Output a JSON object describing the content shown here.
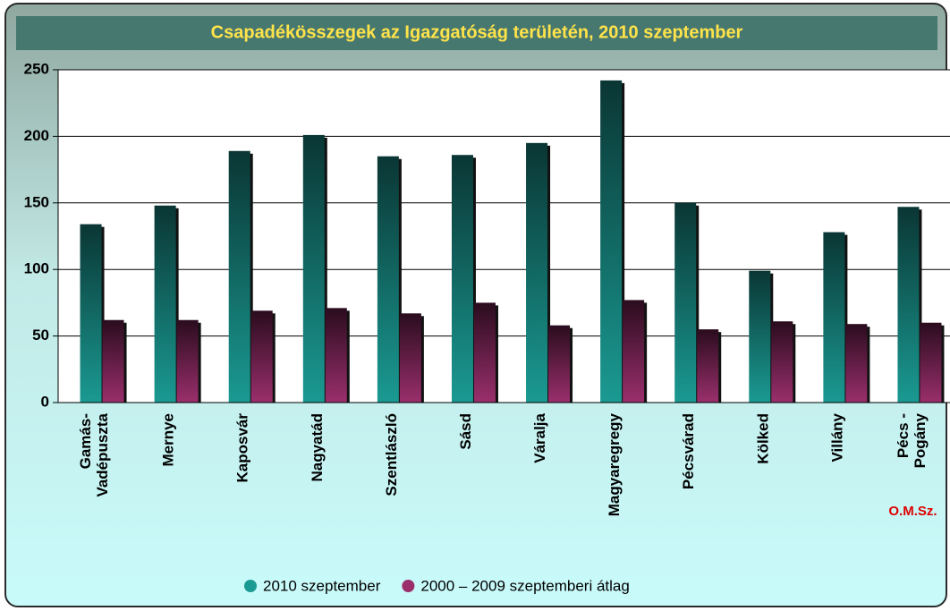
{
  "chart_data": {
    "type": "bar",
    "title": "Csapadékösszegek az Igazgatóság területén, 2010 szeptember",
    "categories": [
      "Gamás-\nVadépuszta",
      "Mernye",
      "Kaposvár",
      "Nagyatád",
      "Szentlászló",
      "Sásd",
      "Váralja",
      "Magyaregregy",
      "Pécsvárad",
      "Kölked",
      "Villány",
      "Pécs -\nPogány"
    ],
    "series": [
      {
        "name": "2010 szeptember",
        "color": "#1a9a92",
        "values": [
          134,
          148,
          189,
          201,
          185,
          186,
          195,
          242,
          150,
          99,
          128,
          147
        ]
      },
      {
        "name": "2000 – 2009 szeptemberi átlag",
        "color": "#9a2f6c",
        "values": [
          62,
          62,
          69,
          71,
          67,
          75,
          58,
          77,
          55,
          61,
          59,
          60
        ]
      }
    ],
    "annotation": "O.M.Sz.",
    "ylim": [
      0,
      250
    ],
    "yticks": [
      0,
      50,
      100,
      150,
      200,
      250
    ],
    "grid": true
  }
}
